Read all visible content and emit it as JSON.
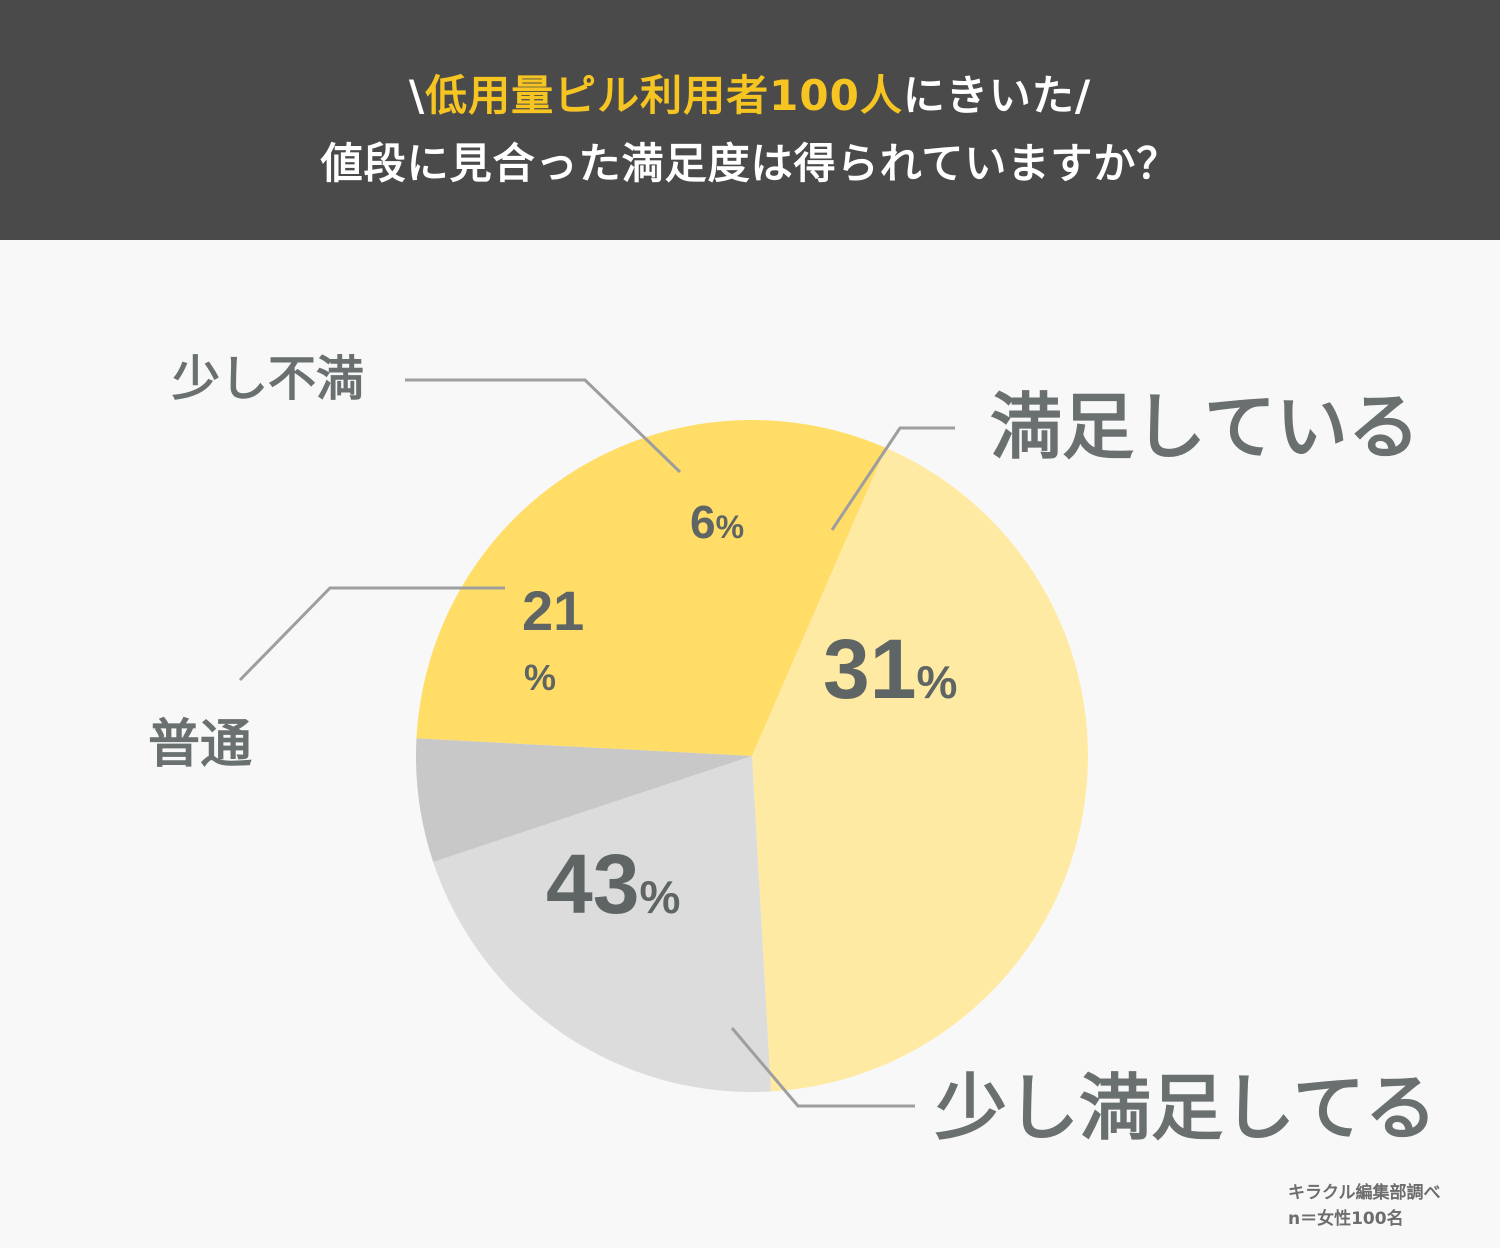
{
  "header": {
    "slash_open": "\\",
    "highlight": "低用量ピル利用者100人",
    "suffix": "にきいた",
    "slash_close": "/",
    "question": "値段に見合った満足度は得られていますか？"
  },
  "chart_data": {
    "type": "pie",
    "title": "値段に見合った満足度は得られていますか？",
    "unit": "%",
    "slices": [
      {
        "label": "満足している",
        "value": 31,
        "value_text": "31",
        "color": "#ffdd66"
      },
      {
        "label": "少し満足してる",
        "value": 43,
        "value_text": "43",
        "color": "#ffeaa3"
      },
      {
        "label": "普通",
        "value": 21,
        "value_text": "21",
        "color": "#dcdcdc"
      },
      {
        "label": "少し不満",
        "value": 6,
        "value_text": "6",
        "color": "#c8c8c8"
      }
    ]
  },
  "source": {
    "line1": "キラクル編集部調べ",
    "line2": "n＝女性100名"
  }
}
